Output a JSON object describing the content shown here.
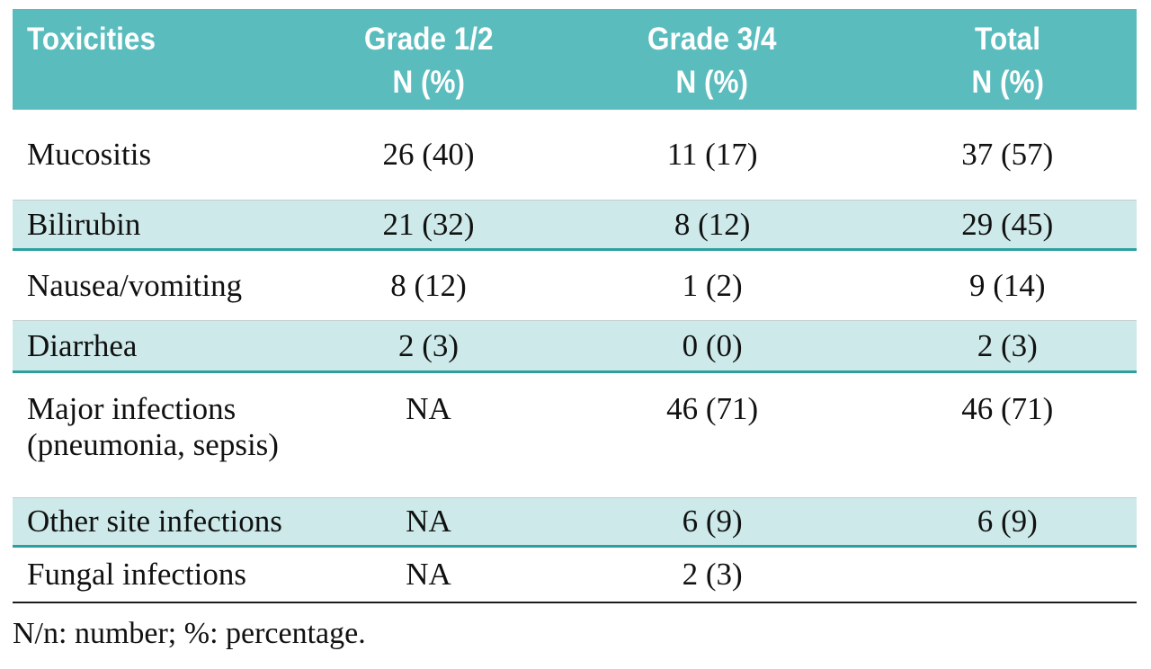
{
  "colors": {
    "header-bg": "#5bbcbe",
    "header-text": "#ffffff",
    "row-alt-bg": "#cde9e9",
    "row-alt-border": "#2e9e9e",
    "row-hairline": "#c4cfcf",
    "bottom-rule": "#1c1c1c",
    "body-text": "#111111"
  },
  "chart_data": {
    "type": "table",
    "columns": [
      {
        "label": "Toxicities",
        "sub": ""
      },
      {
        "label": "Grade 1/2",
        "sub": "N (%)"
      },
      {
        "label": "Grade 3/4",
        "sub": "N (%)"
      },
      {
        "label": "Total",
        "sub": "N (%)"
      }
    ],
    "rows": [
      {
        "cells": [
          "Mucositis",
          "26 (40)",
          "11 (17)",
          "37 (57)"
        ]
      },
      {
        "cells": [
          "Bilirubin",
          "21 (32)",
          "8 (12)",
          "29 (45)"
        ]
      },
      {
        "cells": [
          "Nausea/vomiting",
          "8 (12)",
          "1 (2)",
          "9 (14)"
        ]
      },
      {
        "cells": [
          "Diarrhea",
          "2 (3)",
          "0 (0)",
          "2 (3)"
        ]
      },
      {
        "cells": [
          "Major infections (pneumonia, sepsis)",
          "NA",
          "46 (71)",
          "46 (71)"
        ]
      },
      {
        "cells": [
          "Other site infections",
          "NA",
          "6 (9)",
          "6 (9)"
        ]
      },
      {
        "cells": [
          "Fungal infections",
          "NA",
          "2 (3)",
          ""
        ]
      }
    ],
    "footnote": "N/n: number; %: percentage.",
    "layout": {
      "striped_row_indices": [
        1,
        3,
        5
      ],
      "stripe_style": "light teal background with dark teal bottom rule",
      "header_style": "teal band, white bold condensed text, two-line column heads",
      "grid": "no vertical rules; black rule under last row"
    }
  }
}
